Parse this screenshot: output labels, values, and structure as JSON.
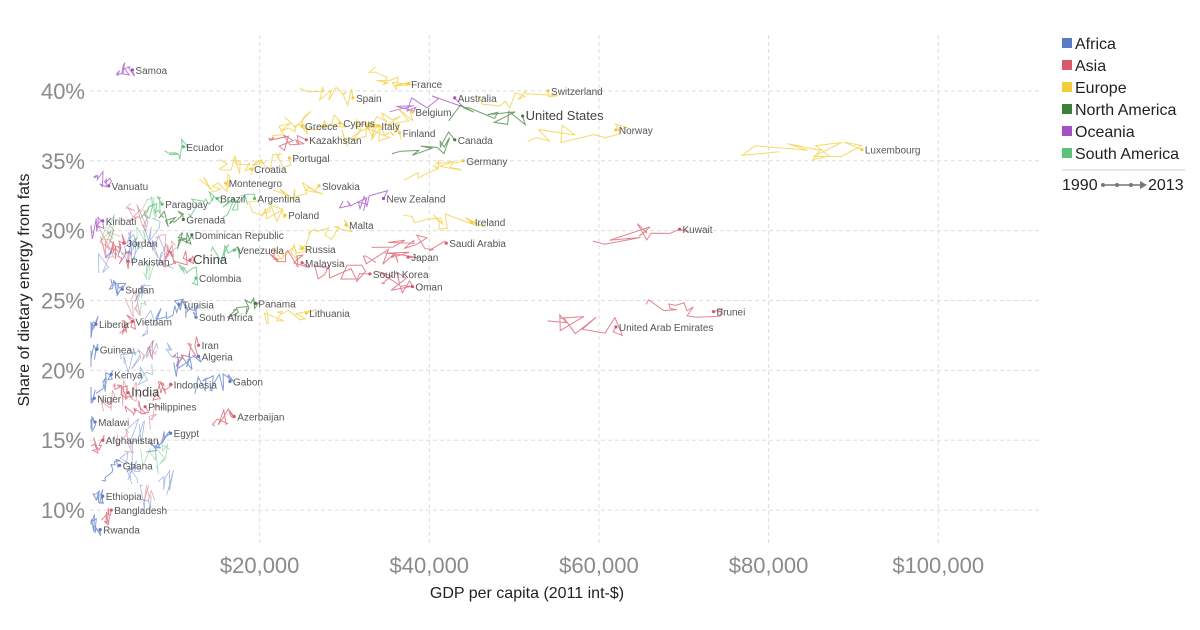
{
  "chart_data": {
    "type": "scatter",
    "xlabel": "GDP per capita (2011 int-$)",
    "ylabel": "Share of dietary energy from fats",
    "xlim": [
      0,
      112000
    ],
    "ylim": [
      7.5,
      44
    ],
    "x_ticks": [
      {
        "value": 20000,
        "label": "$20,000"
      },
      {
        "value": 40000,
        "label": "$40,000"
      },
      {
        "value": 60000,
        "label": "$60,000"
      },
      {
        "value": 80000,
        "label": "$80,000"
      },
      {
        "value": 100000,
        "label": "$100,000"
      }
    ],
    "y_ticks": [
      {
        "value": 10,
        "label": "10%"
      },
      {
        "value": 15,
        "label": "15%"
      },
      {
        "value": 20,
        "label": "20%"
      },
      {
        "value": 25,
        "label": "25%"
      },
      {
        "value": 30,
        "label": "30%"
      },
      {
        "value": 35,
        "label": "35%"
      },
      {
        "value": 40,
        "label": "40%"
      }
    ],
    "grid": true,
    "legend_position": "top-right",
    "time_range": {
      "start": "1990",
      "end": "2013"
    },
    "regions": [
      {
        "name": "Africa",
        "color": "#5b7bc4"
      },
      {
        "name": "Asia",
        "color": "#d85a6a"
      },
      {
        "name": "Europe",
        "color": "#f2cc3a"
      },
      {
        "name": "North America",
        "color": "#3e7f3a"
      },
      {
        "name": "Oceania",
        "color": "#a64fc4"
      },
      {
        "name": "South America",
        "color": "#5cc27a"
      }
    ],
    "series": [
      {
        "label": "Samoa",
        "region": "Oceania",
        "x": 5000,
        "y": 41.5,
        "big": false
      },
      {
        "label": "Spain",
        "region": "Europe",
        "x": 31000,
        "y": 39.5,
        "big": false
      },
      {
        "label": "France",
        "region": "Europe",
        "x": 37500,
        "y": 40.5,
        "big": false
      },
      {
        "label": "Australia",
        "region": "Oceania",
        "x": 43000,
        "y": 39.5,
        "big": false
      },
      {
        "label": "Switzerland",
        "region": "Europe",
        "x": 54000,
        "y": 40.0,
        "big": false
      },
      {
        "label": "United States",
        "region": "North America",
        "x": 51000,
        "y": 38.2,
        "big": true
      },
      {
        "label": "Greece",
        "region": "Europe",
        "x": 25000,
        "y": 37.5,
        "big": false
      },
      {
        "label": "Cyprus",
        "region": "Europe",
        "x": 29500,
        "y": 37.7,
        "big": false
      },
      {
        "label": "Italy",
        "region": "Europe",
        "x": 34000,
        "y": 37.5,
        "big": false
      },
      {
        "label": "Belgium",
        "region": "Europe",
        "x": 38000,
        "y": 38.5,
        "big": false
      },
      {
        "label": "Norway",
        "region": "Europe",
        "x": 62000,
        "y": 37.2,
        "big": false
      },
      {
        "label": "Luxembourg",
        "region": "Europe",
        "x": 91000,
        "y": 35.8,
        "big": false
      },
      {
        "label": "Kazakhstan",
        "region": "Asia",
        "x": 25500,
        "y": 36.5,
        "big": false
      },
      {
        "label": "Finland",
        "region": "Europe",
        "x": 36500,
        "y": 37.0,
        "big": false
      },
      {
        "label": "Canada",
        "region": "North America",
        "x": 43000,
        "y": 36.5,
        "big": false
      },
      {
        "label": "Ecuador",
        "region": "South America",
        "x": 11000,
        "y": 36.0,
        "big": false
      },
      {
        "label": "Portugal",
        "region": "Europe",
        "x": 23500,
        "y": 35.2,
        "big": false
      },
      {
        "label": "Germany",
        "region": "Europe",
        "x": 44000,
        "y": 35.0,
        "big": false
      },
      {
        "label": "Croatia",
        "region": "Europe",
        "x": 19000,
        "y": 34.4,
        "big": false
      },
      {
        "label": "Montenegro",
        "region": "Europe",
        "x": 16000,
        "y": 33.4,
        "big": false
      },
      {
        "label": "Slovakia",
        "region": "Europe",
        "x": 27000,
        "y": 33.2,
        "big": false
      },
      {
        "label": "Vanuatu",
        "region": "Oceania",
        "x": 2200,
        "y": 33.2,
        "big": false
      },
      {
        "label": "Brazil",
        "region": "South America",
        "x": 15000,
        "y": 32.3,
        "big": false
      },
      {
        "label": "Argentina",
        "region": "South America",
        "x": 19400,
        "y": 32.3,
        "big": false
      },
      {
        "label": "New Zealand",
        "region": "Oceania",
        "x": 34600,
        "y": 32.3,
        "big": false
      },
      {
        "label": "Paraguay",
        "region": "South America",
        "x": 8500,
        "y": 31.9,
        "big": false
      },
      {
        "label": "Poland",
        "region": "Europe",
        "x": 23000,
        "y": 31.1,
        "big": false
      },
      {
        "label": "Grenada",
        "region": "North America",
        "x": 11000,
        "y": 30.8,
        "big": false
      },
      {
        "label": "Kiribati",
        "region": "Oceania",
        "x": 1500,
        "y": 30.7,
        "big": false
      },
      {
        "label": "Ireland",
        "region": "Europe",
        "x": 45000,
        "y": 30.6,
        "big": false
      },
      {
        "label": "Malta",
        "region": "Europe",
        "x": 30200,
        "y": 30.4,
        "big": false
      },
      {
        "label": "Kuwait",
        "region": "Asia",
        "x": 69500,
        "y": 30.1,
        "big": false
      },
      {
        "label": "Dominican Republic",
        "region": "North America",
        "x": 12000,
        "y": 29.7,
        "big": false
      },
      {
        "label": "Jordan",
        "region": "Asia",
        "x": 4000,
        "y": 29.1,
        "big": false
      },
      {
        "label": "Saudi Arabia",
        "region": "Asia",
        "x": 42000,
        "y": 29.1,
        "big": false
      },
      {
        "label": "Venezuela",
        "region": "South America",
        "x": 17000,
        "y": 28.6,
        "big": false
      },
      {
        "label": "Russia",
        "region": "Europe",
        "x": 25000,
        "y": 28.7,
        "big": false
      },
      {
        "label": "Japan",
        "region": "Asia",
        "x": 37500,
        "y": 28.1,
        "big": false
      },
      {
        "label": "China",
        "region": "Asia",
        "x": 11800,
        "y": 27.9,
        "big": true
      },
      {
        "label": "Pakistan",
        "region": "Asia",
        "x": 4500,
        "y": 27.8,
        "big": false
      },
      {
        "label": "Malaysia",
        "region": "Asia",
        "x": 25000,
        "y": 27.7,
        "big": false
      },
      {
        "label": "South Korea",
        "region": "Asia",
        "x": 33000,
        "y": 26.9,
        "big": false
      },
      {
        "label": "Colombia",
        "region": "South America",
        "x": 12500,
        "y": 26.6,
        "big": false
      },
      {
        "label": "Oman",
        "region": "Asia",
        "x": 38000,
        "y": 26.0,
        "big": false
      },
      {
        "label": "Sudan",
        "region": "Africa",
        "x": 3800,
        "y": 25.8,
        "big": false
      },
      {
        "label": "Panama",
        "region": "North America",
        "x": 19500,
        "y": 24.8,
        "big": false
      },
      {
        "label": "Tunisia",
        "region": "Africa",
        "x": 10500,
        "y": 24.7,
        "big": false
      },
      {
        "label": "Lithuania",
        "region": "Europe",
        "x": 25500,
        "y": 24.1,
        "big": false
      },
      {
        "label": "Brunei",
        "region": "Asia",
        "x": 73500,
        "y": 24.2,
        "big": false
      },
      {
        "label": "South Africa",
        "region": "Africa",
        "x": 12500,
        "y": 23.8,
        "big": false
      },
      {
        "label": "Vietnam",
        "region": "Asia",
        "x": 5000,
        "y": 23.5,
        "big": false
      },
      {
        "label": "Liberia",
        "region": "Africa",
        "x": 700,
        "y": 23.3,
        "big": false
      },
      {
        "label": "United Arab Emirates",
        "region": "Asia",
        "x": 62000,
        "y": 23.1,
        "big": false
      },
      {
        "label": "Iran",
        "region": "Asia",
        "x": 12800,
        "y": 21.8,
        "big": false
      },
      {
        "label": "Guinea",
        "region": "Africa",
        "x": 800,
        "y": 21.5,
        "big": false
      },
      {
        "label": "Algeria",
        "region": "Africa",
        "x": 12800,
        "y": 21.0,
        "big": false
      },
      {
        "label": "Kenya",
        "region": "Africa",
        "x": 2500,
        "y": 19.7,
        "big": false
      },
      {
        "label": "Gabon",
        "region": "Africa",
        "x": 16500,
        "y": 19.2,
        "big": false
      },
      {
        "label": "Indonesia",
        "region": "Asia",
        "x": 9500,
        "y": 19.0,
        "big": false
      },
      {
        "label": "India",
        "region": "Asia",
        "x": 4500,
        "y": 18.4,
        "big": true
      },
      {
        "label": "Niger",
        "region": "Africa",
        "x": 500,
        "y": 18.0,
        "big": false
      },
      {
        "label": "Philippines",
        "region": "Asia",
        "x": 6500,
        "y": 17.4,
        "big": false
      },
      {
        "label": "Azerbaijan",
        "region": "Asia",
        "x": 17000,
        "y": 16.7,
        "big": false
      },
      {
        "label": "Malawi",
        "region": "Africa",
        "x": 600,
        "y": 16.3,
        "big": false
      },
      {
        "label": "Egypt",
        "region": "Africa",
        "x": 9500,
        "y": 15.5,
        "big": false
      },
      {
        "label": "Afghanistan",
        "region": "Asia",
        "x": 1500,
        "y": 15.0,
        "big": false
      },
      {
        "label": "Ghana",
        "region": "Africa",
        "x": 3500,
        "y": 13.2,
        "big": false
      },
      {
        "label": "Ethiopia",
        "region": "Africa",
        "x": 1500,
        "y": 11.0,
        "big": false
      },
      {
        "label": "Bangladesh",
        "region": "Asia",
        "x": 2500,
        "y": 10.0,
        "big": false
      },
      {
        "label": "Rwanda",
        "region": "Africa",
        "x": 1200,
        "y": 8.6,
        "big": false
      }
    ]
  }
}
